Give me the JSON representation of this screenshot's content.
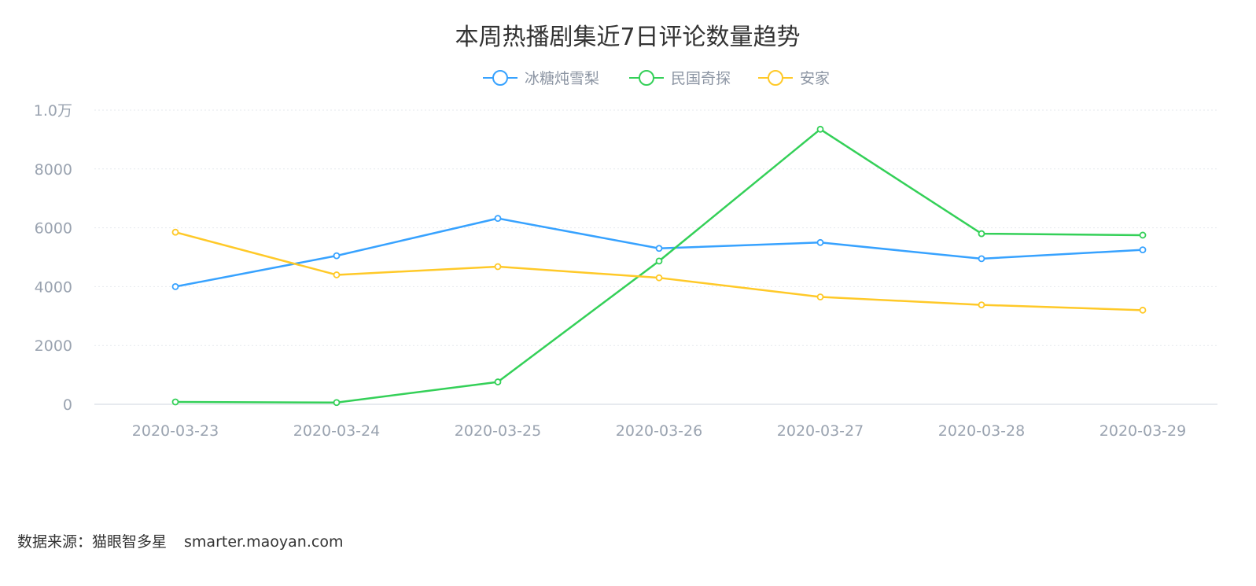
{
  "chart_data": {
    "type": "line",
    "title": "本周热播剧集近7日评论数量趋势",
    "x": [
      "2020-03-23",
      "2020-03-24",
      "2020-03-25",
      "2020-03-26",
      "2020-03-27",
      "2020-03-28",
      "2020-03-29"
    ],
    "series": [
      {
        "name": "冰糖炖雪梨",
        "color": "#37a2ff",
        "values": [
          4000,
          5050,
          6320,
          5300,
          5500,
          4950,
          5250
        ]
      },
      {
        "name": "民国奇探",
        "color": "#34d058",
        "values": [
          80,
          60,
          760,
          4870,
          9350,
          5800,
          5750
        ]
      },
      {
        "name": "安家",
        "color": "#ffc928",
        "values": [
          5850,
          4400,
          4680,
          4300,
          3650,
          3380,
          3200
        ]
      }
    ],
    "ylim": [
      0,
      10000
    ],
    "yticks": [
      0,
      2000,
      4000,
      6000,
      8000,
      10000
    ],
    "ytick_labels": [
      "0",
      "2000",
      "4000",
      "6000",
      "8000",
      "1.0万"
    ],
    "xlabel": "",
    "ylabel": "",
    "grid": true,
    "legend": "top-center"
  },
  "footer": {
    "source_label": "数据来源：猫眼智多星",
    "source_url": "smarter.maoyan.com"
  }
}
